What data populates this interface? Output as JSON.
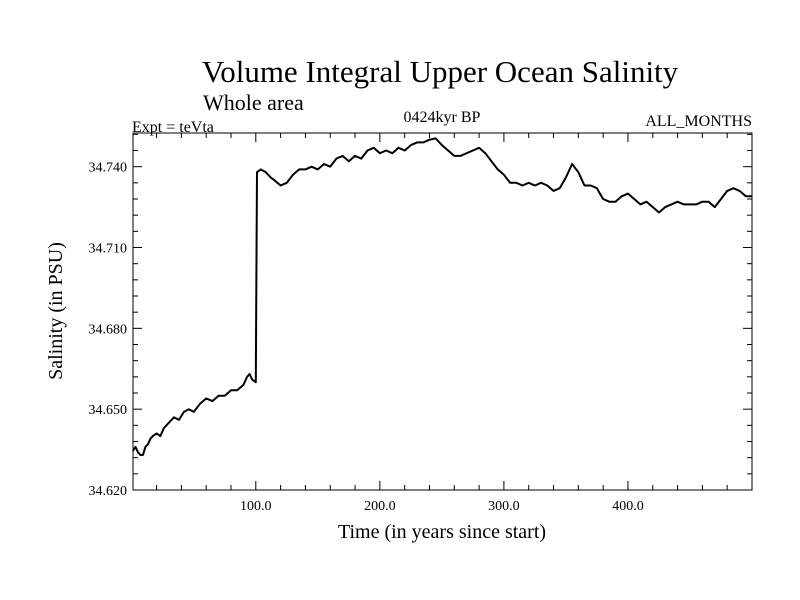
{
  "chart_data": {
    "type": "line",
    "title": "Volume Integral Upper Ocean Salinity",
    "subtitle": "Whole area",
    "left_label": "Expt = teVta",
    "center_label": "0424kyr BP",
    "right_label": "ALL_MONTHS",
    "xlabel": "Time (in years since start)",
    "ylabel": "Salinity (in PSU)",
    "xlim": [
      1,
      500
    ],
    "ylim": [
      34.62,
      34.7525
    ],
    "xticks": [
      100,
      200,
      300,
      400
    ],
    "xtick_labels": [
      "100.0",
      "200.0",
      "300.0",
      "400.0"
    ],
    "yticks": [
      34.62,
      34.65,
      34.68,
      34.71,
      34.74
    ],
    "ytick_labels": [
      "34.620",
      "34.650",
      "34.680",
      "34.710",
      "34.740"
    ],
    "grid": false,
    "series": [
      {
        "color": "#000000",
        "x": [
          1,
          3,
          5,
          7,
          9,
          11,
          13,
          15,
          17,
          20,
          23,
          26,
          30,
          34,
          38,
          42,
          46,
          50,
          55,
          60,
          65,
          70,
          75,
          80,
          85,
          90,
          93,
          95,
          97,
          100,
          100.5,
          101,
          104,
          108,
          112,
          115,
          120,
          125,
          130,
          135,
          140,
          145,
          150,
          155,
          160,
          165,
          170,
          175,
          180,
          185,
          190,
          195,
          200,
          205,
          210,
          215,
          220,
          225,
          230,
          235,
          240,
          245,
          250,
          255,
          260,
          265,
          270,
          275,
          280,
          285,
          290,
          295,
          300,
          305,
          310,
          315,
          320,
          325,
          330,
          335,
          340,
          345,
          350,
          355,
          360,
          365,
          370,
          375,
          380,
          385,
          390,
          395,
          400,
          405,
          410,
          415,
          420,
          425,
          430,
          435,
          440,
          445,
          450,
          455,
          460,
          465,
          470,
          475,
          480,
          485,
          490,
          495,
          500
        ],
        "y": [
          34.6345,
          34.636,
          34.634,
          34.633,
          34.633,
          34.636,
          34.637,
          34.639,
          34.64,
          34.641,
          34.64,
          34.643,
          34.645,
          34.647,
          34.646,
          34.649,
          34.65,
          34.649,
          34.652,
          34.654,
          34.653,
          34.655,
          34.655,
          34.657,
          34.657,
          34.659,
          34.662,
          34.663,
          34.661,
          34.66,
          34.7,
          34.738,
          34.739,
          34.738,
          34.736,
          34.735,
          34.733,
          34.734,
          34.737,
          34.739,
          34.739,
          34.74,
          34.739,
          34.741,
          34.74,
          34.743,
          34.744,
          34.742,
          34.744,
          34.743,
          34.746,
          34.747,
          34.745,
          34.746,
          34.745,
          34.747,
          34.746,
          34.748,
          34.749,
          34.749,
          34.75,
          34.7505,
          34.748,
          34.746,
          34.744,
          34.744,
          34.745,
          34.746,
          34.747,
          34.745,
          34.742,
          34.739,
          34.737,
          34.734,
          34.734,
          34.733,
          34.734,
          34.733,
          34.734,
          34.733,
          34.731,
          34.732,
          34.736,
          34.741,
          34.738,
          34.733,
          34.733,
          34.732,
          34.728,
          34.727,
          34.727,
          34.729,
          34.73,
          34.728,
          34.726,
          34.727,
          34.725,
          34.723,
          34.725,
          34.726,
          34.727,
          34.726,
          34.726,
          34.726,
          34.727,
          34.727,
          34.725,
          34.728,
          34.731,
          34.732,
          34.731,
          34.729,
          34.729
        ]
      }
    ]
  }
}
